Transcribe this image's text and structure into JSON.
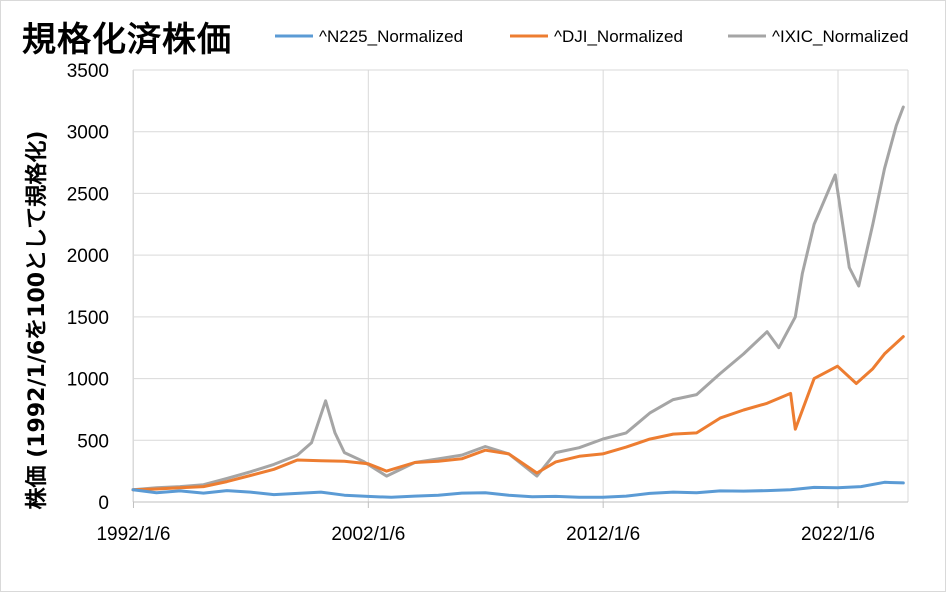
{
  "chart_data": {
    "type": "line",
    "title": "規格化済株価",
    "ylabel": "株価 (1992/1/6を100として規格化)",
    "xlabel": "",
    "ylim": [
      0,
      3500
    ],
    "yticks": [
      0,
      500,
      1000,
      1500,
      2000,
      2500,
      3000,
      3500
    ],
    "xlim": [
      1992.0,
      2025.0
    ],
    "xticks": [
      {
        "label": "1992/1/6",
        "value": 1992.02
      },
      {
        "label": "2002/1/6",
        "value": 2002.02
      },
      {
        "label": "2012/1/6",
        "value": 2012.02
      },
      {
        "label": "2022/1/6",
        "value": 2022.02
      }
    ],
    "grid": true,
    "legend_position": "top",
    "series": [
      {
        "name": "^N225_Normalized",
        "color": "#5b9bd5",
        "x": [
          1992.0,
          1993.0,
          1994.0,
          1995.0,
          1996.0,
          1997.0,
          1998.0,
          1999.0,
          2000.0,
          2001.0,
          2002.0,
          2003.0,
          2004.0,
          2005.0,
          2006.0,
          2007.0,
          2008.0,
          2009.0,
          2010.0,
          2011.0,
          2012.0,
          2013.0,
          2014.0,
          2015.0,
          2016.0,
          2017.0,
          2018.0,
          2019.0,
          2020.0,
          2021.0,
          2022.0,
          2023.0,
          2024.0,
          2024.8
        ],
        "y": [
          100,
          75,
          90,
          72,
          92,
          80,
          60,
          70,
          80,
          55,
          45,
          38,
          48,
          55,
          72,
          75,
          55,
          42,
          45,
          38,
          38,
          48,
          70,
          80,
          75,
          90,
          88,
          92,
          100,
          118,
          115,
          125,
          160,
          155
        ]
      },
      {
        "name": "^DJI_Normalized",
        "color": "#ed7d31",
        "x": [
          1992.0,
          1993.0,
          1994.0,
          1995.0,
          1996.0,
          1997.0,
          1998.0,
          1999.0,
          2000.0,
          2001.0,
          2002.0,
          2002.8,
          2004.0,
          2005.0,
          2006.0,
          2007.0,
          2008.0,
          2009.2,
          2010.0,
          2011.0,
          2012.0,
          2013.0,
          2014.0,
          2015.0,
          2016.0,
          2017.0,
          2018.0,
          2019.0,
          2020.0,
          2020.2,
          2021.0,
          2022.0,
          2022.8,
          2023.5,
          2024.0,
          2024.8
        ],
        "y": [
          100,
          105,
          115,
          125,
          165,
          215,
          265,
          340,
          335,
          330,
          310,
          250,
          320,
          330,
          350,
          420,
          390,
          235,
          325,
          370,
          390,
          445,
          510,
          550,
          560,
          680,
          745,
          800,
          880,
          590,
          1000,
          1100,
          960,
          1080,
          1200,
          1340
        ]
      },
      {
        "name": "^IXIC_Normalized",
        "color": "#a5a5a5",
        "x": [
          1992.0,
          1993.0,
          1994.0,
          1995.0,
          1996.0,
          1997.0,
          1998.0,
          1999.0,
          1999.6,
          2000.2,
          2000.6,
          2001.0,
          2001.8,
          2002.8,
          2004.0,
          2005.0,
          2006.0,
          2007.0,
          2008.0,
          2009.2,
          2010.0,
          2011.0,
          2012.0,
          2013.0,
          2014.0,
          2015.0,
          2016.0,
          2017.0,
          2018.0,
          2019.0,
          2019.5,
          2020.2,
          2020.5,
          2021.0,
          2021.9,
          2022.5,
          2022.9,
          2023.5,
          2024.0,
          2024.5,
          2024.8
        ],
        "y": [
          100,
          115,
          125,
          140,
          190,
          245,
          305,
          380,
          480,
          820,
          560,
          400,
          330,
          210,
          320,
          350,
          380,
          450,
          390,
          210,
          400,
          440,
          510,
          560,
          720,
          830,
          870,
          1040,
          1200,
          1380,
          1250,
          1500,
          1850,
          2250,
          2650,
          1900,
          1750,
          2250,
          2700,
          3050,
          3200
        ]
      }
    ]
  }
}
